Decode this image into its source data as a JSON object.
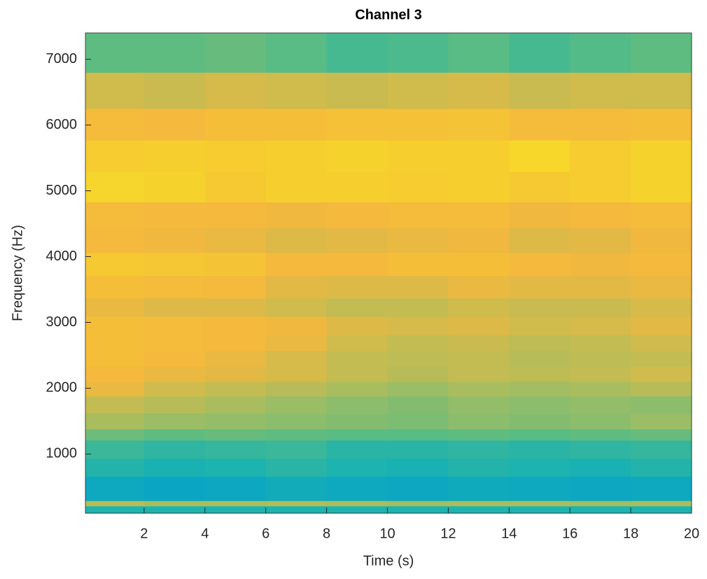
{
  "chart_data": {
    "type": "heatmap",
    "title": "Channel 3",
    "x_label": "Time (s)",
    "y_label": "Frequency (Hz)",
    "x": [
      0.07,
      2,
      4,
      6,
      8,
      10,
      12,
      14,
      16,
      18,
      20
    ],
    "y": [
      100,
      210,
      290,
      660,
      930,
      1210,
      1380,
      1620,
      1880,
      2100,
      2330,
      2570,
      2810,
      3090,
      3370,
      3710,
      4060,
      4440,
      4830,
      5290,
      5770,
      6250,
      6800,
      7400
    ],
    "values": [
      [
        0.45,
        0.45,
        0.45,
        0.45,
        0.45,
        0.45,
        0.45,
        0.45,
        0.45,
        0.45
      ],
      [
        0.68,
        0.66,
        0.66,
        0.67,
        0.66,
        0.65,
        0.66,
        0.66,
        0.65,
        0.66
      ],
      [
        0.38,
        0.36,
        0.37,
        0.4,
        0.38,
        0.37,
        0.39,
        0.38,
        0.37,
        0.38
      ],
      [
        0.46,
        0.44,
        0.45,
        0.47,
        0.45,
        0.44,
        0.46,
        0.45,
        0.44,
        0.46
      ],
      [
        0.5,
        0.48,
        0.49,
        0.5,
        0.47,
        0.47,
        0.48,
        0.47,
        0.48,
        0.49
      ],
      [
        0.58,
        0.56,
        0.57,
        0.56,
        0.55,
        0.55,
        0.56,
        0.55,
        0.56,
        0.57
      ],
      [
        0.66,
        0.64,
        0.63,
        0.62,
        0.61,
        0.6,
        0.62,
        0.61,
        0.62,
        0.64
      ],
      [
        0.7,
        0.68,
        0.66,
        0.64,
        0.62,
        0.61,
        0.63,
        0.62,
        0.63,
        0.62
      ],
      [
        0.76,
        0.72,
        0.7,
        0.68,
        0.66,
        0.64,
        0.66,
        0.65,
        0.66,
        0.68
      ],
      [
        0.78,
        0.76,
        0.75,
        0.73,
        0.7,
        0.68,
        0.7,
        0.69,
        0.7,
        0.72
      ],
      [
        0.8,
        0.78,
        0.76,
        0.73,
        0.7,
        0.69,
        0.7,
        0.68,
        0.69,
        0.7
      ],
      [
        0.8,
        0.79,
        0.78,
        0.76,
        0.72,
        0.7,
        0.71,
        0.69,
        0.7,
        0.72
      ],
      [
        0.8,
        0.79,
        0.78,
        0.77,
        0.74,
        0.73,
        0.74,
        0.72,
        0.73,
        0.75
      ],
      [
        0.76,
        0.74,
        0.74,
        0.72,
        0.7,
        0.7,
        0.72,
        0.71,
        0.71,
        0.73
      ],
      [
        0.8,
        0.79,
        0.78,
        0.75,
        0.74,
        0.74,
        0.76,
        0.75,
        0.75,
        0.76
      ],
      [
        0.84,
        0.83,
        0.82,
        0.78,
        0.78,
        0.8,
        0.8,
        0.78,
        0.77,
        0.78
      ],
      [
        0.78,
        0.77,
        0.76,
        0.74,
        0.75,
        0.76,
        0.77,
        0.74,
        0.75,
        0.77
      ],
      [
        0.79,
        0.78,
        0.78,
        0.77,
        0.78,
        0.79,
        0.79,
        0.77,
        0.78,
        0.79
      ],
      [
        0.88,
        0.87,
        0.84,
        0.86,
        0.86,
        0.85,
        0.86,
        0.84,
        0.85,
        0.87
      ],
      [
        0.85,
        0.86,
        0.85,
        0.86,
        0.87,
        0.86,
        0.86,
        0.89,
        0.85,
        0.87
      ],
      [
        0.79,
        0.78,
        0.8,
        0.8,
        0.81,
        0.81,
        0.82,
        0.79,
        0.79,
        0.8
      ],
      [
        0.72,
        0.71,
        0.73,
        0.72,
        0.71,
        0.72,
        0.73,
        0.71,
        0.72,
        0.72
      ],
      [
        0.56,
        0.56,
        0.57,
        0.55,
        0.52,
        0.53,
        0.55,
        0.52,
        0.54,
        0.56
      ]
    ],
    "colormap": [
      "#352a87",
      "#0363e1",
      "#1485d4",
      "#06a1ca",
      "#1ab2b0",
      "#5cbc82",
      "#aebd5c",
      "#f5b83d",
      "#f6d72a",
      "#f9fb0e"
    ],
    "xlim": [
      0.07,
      20
    ],
    "ylim": [
      100,
      7400
    ],
    "xticks": [
      2,
      4,
      6,
      8,
      10,
      12,
      14,
      16,
      18,
      20
    ],
    "yticks": [
      1000,
      2000,
      3000,
      4000,
      5000,
      6000,
      7000
    ],
    "grid": false
  }
}
